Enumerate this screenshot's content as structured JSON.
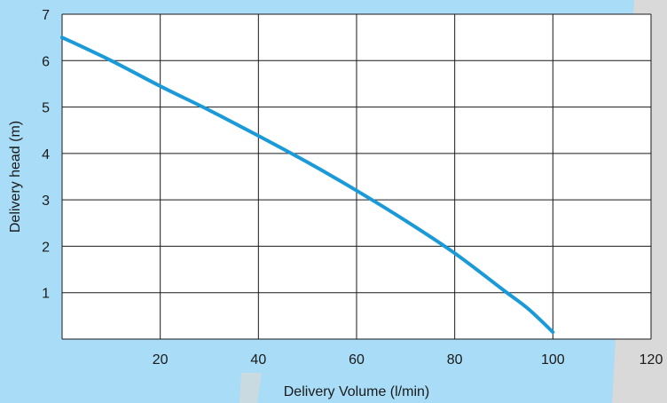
{
  "chart_data": {
    "type": "line",
    "title": "",
    "xlabel": "Delivery Volume (l/min)",
    "ylabel": "Delivery head (m)",
    "xlim": [
      0,
      120
    ],
    "ylim": [
      0,
      7
    ],
    "xticks": [
      20,
      40,
      60,
      80,
      100,
      120
    ],
    "yticks": [
      1,
      2,
      3,
      4,
      5,
      6,
      7
    ],
    "grid": true,
    "series": [
      {
        "x": [
          0,
          10,
          20,
          30,
          40,
          50,
          60,
          70,
          80,
          90,
          95,
          100
        ],
        "y": [
          6.5,
          6.0,
          5.45,
          4.93,
          4.38,
          3.81,
          3.2,
          2.55,
          1.85,
          1.05,
          0.65,
          0.15
        ]
      }
    ]
  },
  "colors": {
    "line": "#1a9ad8",
    "grid": "#1a1a1a",
    "bg_blue": "#a9dcf6",
    "bg_gray": "#d9d9d9",
    "plot_bg": "#ffffff"
  }
}
